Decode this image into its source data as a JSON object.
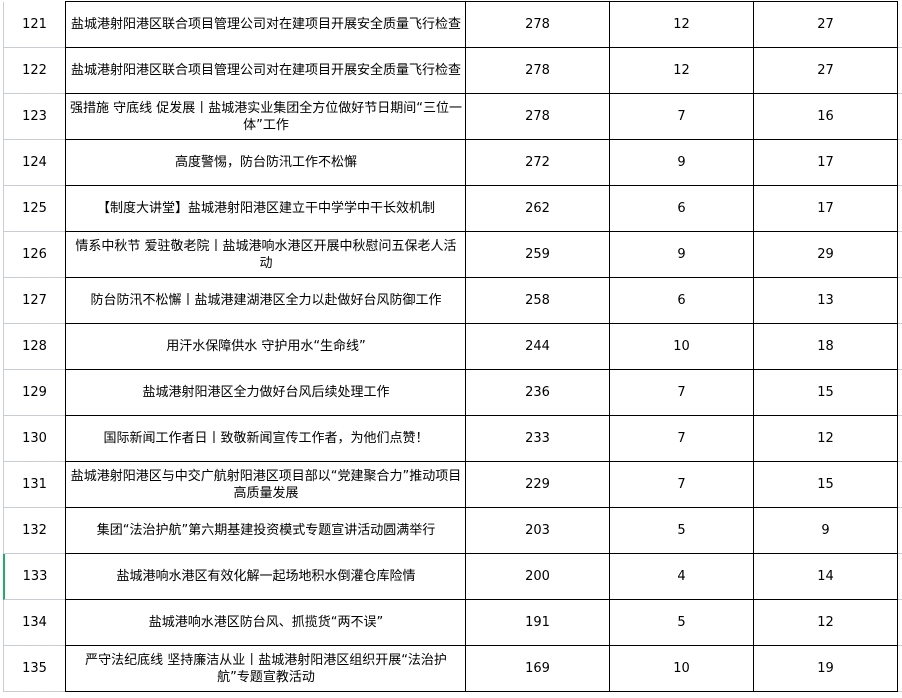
{
  "rows": [
    {
      "num": "121",
      "title": "盐城港射阳港区联合项目管理公司对在建项目开展安全质量飞行检查",
      "a": "278",
      "b": "12",
      "c": "27"
    },
    {
      "num": "122",
      "title": "盐城港射阳港区联合项目管理公司对在建项目开展安全质量飞行检查",
      "a": "278",
      "b": "12",
      "c": "27"
    },
    {
      "num": "123",
      "title": "强措施 守底线 促发展丨盐城港实业集团全方位做好节日期间“三位一体”工作",
      "a": "278",
      "b": "7",
      "c": "16"
    },
    {
      "num": "124",
      "title": "高度警惕，防台防汛工作不松懈",
      "a": "272",
      "b": "9",
      "c": "17"
    },
    {
      "num": "125",
      "title": "【制度大讲堂】盐城港射阳港区建立干中学学中干长效机制",
      "a": "262",
      "b": "6",
      "c": "17"
    },
    {
      "num": "126",
      "title": "情系中秋节 爱驻敬老院丨盐城港响水港区开展中秋慰问五保老人活动",
      "a": "259",
      "b": "9",
      "c": "29"
    },
    {
      "num": "127",
      "title": "防台防汛不松懈丨盐城港建湖港区全力以赴做好台风防御工作",
      "a": "258",
      "b": "6",
      "c": "13"
    },
    {
      "num": "128",
      "title": "用汗水保障供水 守护用水“生命线”",
      "a": "244",
      "b": "10",
      "c": "18"
    },
    {
      "num": "129",
      "title": "盐城港射阳港区全力做好台风后续处理工作",
      "a": "236",
      "b": "7",
      "c": "15"
    },
    {
      "num": "130",
      "title": "国际新闻工作者日丨致敬新闻宣传工作者，为他们点赞！",
      "a": "233",
      "b": "7",
      "c": "12"
    },
    {
      "num": "131",
      "title": "盐城港射阳港区与中交广航射阳港区项目部以“党建聚合力”推动项目高质量发展",
      "a": "229",
      "b": "7",
      "c": "15"
    },
    {
      "num": "132",
      "title": "集团“法治护航”第六期基建投资模式专题宣讲活动圆满举行",
      "a": "203",
      "b": "5",
      "c": "9"
    },
    {
      "num": "133",
      "title": "盐城港响水港区有效化解一起场地积水倒灌仓库险情",
      "a": "200",
      "b": "4",
      "c": "14"
    },
    {
      "num": "134",
      "title": "盐城港响水港区防台风、抓揽货“两不误”",
      "a": "191",
      "b": "5",
      "c": "12"
    },
    {
      "num": "135",
      "title": "严守法纪底线 坚持廉洁从业丨盐城港射阳港区组织开展“法治护航”专题宣教活动",
      "a": "169",
      "b": "10",
      "c": "19"
    }
  ],
  "selected_row": "133",
  "colors": {
    "selection": "#1fae6a",
    "gridline": "#c8ccd8",
    "border": "#000000"
  }
}
